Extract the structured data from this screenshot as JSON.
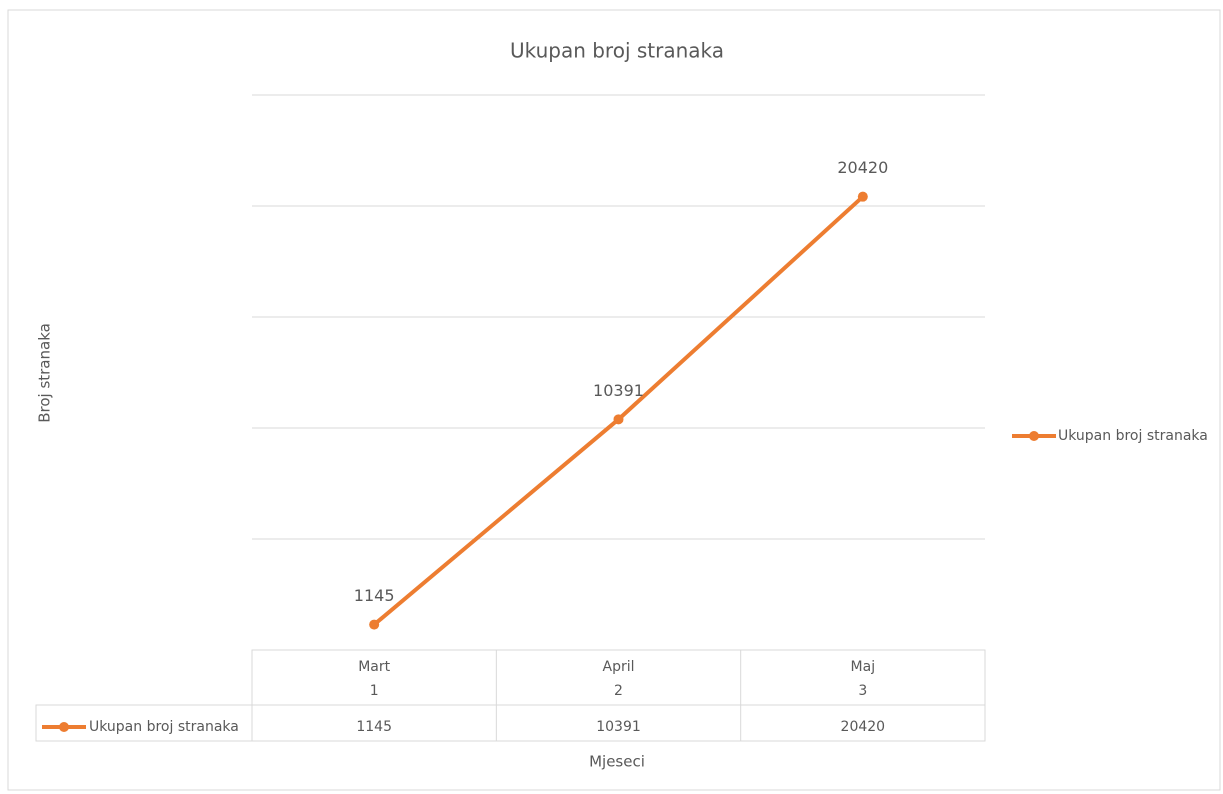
{
  "chart_data": {
    "type": "line",
    "title": "Ukupan broj  stranaka",
    "x_label": "Mjeseci",
    "y_label": "Broj stranaka",
    "categories": [
      "Mart",
      "April",
      "Maj"
    ],
    "category_numbers": [
      1,
      2,
      3
    ],
    "series": [
      {
        "name": "Ukupan broj  stranaka",
        "color": "#ed7d31",
        "values": [
          1145,
          10391,
          20420
        ]
      }
    ],
    "ylim": [
      0,
      25000
    ],
    "yticks": [
      0,
      5000,
      10000,
      15000,
      20000,
      25000
    ],
    "grid": true,
    "legend": "right",
    "data_labels": true,
    "data_table": true
  }
}
